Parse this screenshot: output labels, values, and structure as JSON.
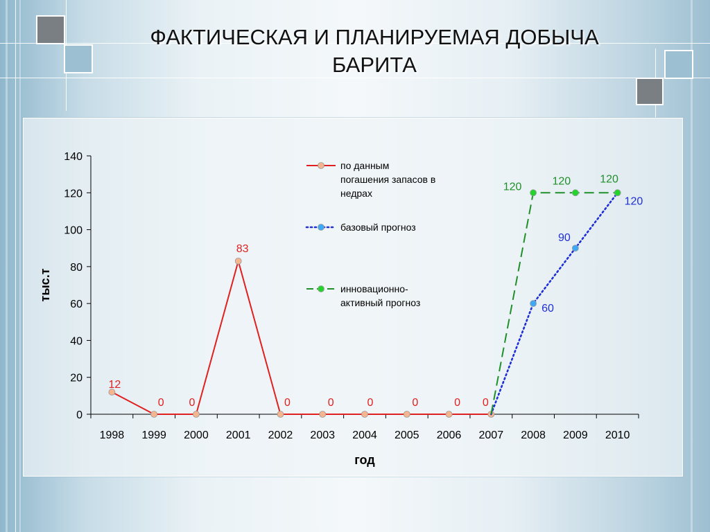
{
  "slide": {
    "title_line1": "ФАКТИЧЕСКАЯ И ПЛАНИРУЕМАЯ ДОБЫЧА",
    "title_line2": "БАРИТА"
  },
  "chart_data": {
    "type": "line",
    "x": [
      "1998",
      "1999",
      "2000",
      "2001",
      "2002",
      "2003",
      "2004",
      "2005",
      "2006",
      "2007",
      "2008",
      "2009",
      "2010"
    ],
    "xlabel": "год",
    "ylabel": "тыс.т",
    "ylim": [
      0,
      140
    ],
    "yticks": [
      0,
      20,
      40,
      60,
      80,
      100,
      120,
      140
    ],
    "grid": false,
    "legend_position": "top-right",
    "series": [
      {
        "name": "по данным погашения запасов в недрах",
        "legend_lines": [
          "по данным",
          "погашения запасов в",
          "недрах"
        ],
        "color": "#e02020",
        "marker_fill": "#f4b58f",
        "style": "solid",
        "values": [
          12,
          0,
          0,
          83,
          0,
          0,
          0,
          0,
          0,
          0,
          null,
          null,
          null
        ],
        "labels": [
          "12",
          "0",
          "0",
          "83",
          "0",
          "0",
          "0",
          "0",
          "0",
          "0",
          null,
          null,
          null
        ]
      },
      {
        "name": "базовый прогноз",
        "legend_lines": [
          "базовый прогноз"
        ],
        "color": "#1f2fd6",
        "marker_fill": "#3fa9f5",
        "style": "dotted",
        "values": [
          null,
          null,
          null,
          null,
          null,
          null,
          null,
          null,
          null,
          0,
          60,
          90,
          120
        ],
        "labels": [
          null,
          null,
          null,
          null,
          null,
          null,
          null,
          null,
          null,
          null,
          "60",
          "90",
          "120"
        ]
      },
      {
        "name": "инновационно-активный прогноз",
        "legend_lines": [
          "инновационно-",
          "активный прогноз"
        ],
        "color": "#1f8f2a",
        "marker_fill": "#22d52a",
        "style": "dashed",
        "values": [
          null,
          null,
          null,
          null,
          null,
          null,
          null,
          null,
          null,
          0,
          120,
          120,
          120
        ],
        "labels": [
          null,
          null,
          null,
          null,
          null,
          null,
          null,
          null,
          null,
          null,
          "120",
          "120",
          "120"
        ]
      }
    ]
  }
}
